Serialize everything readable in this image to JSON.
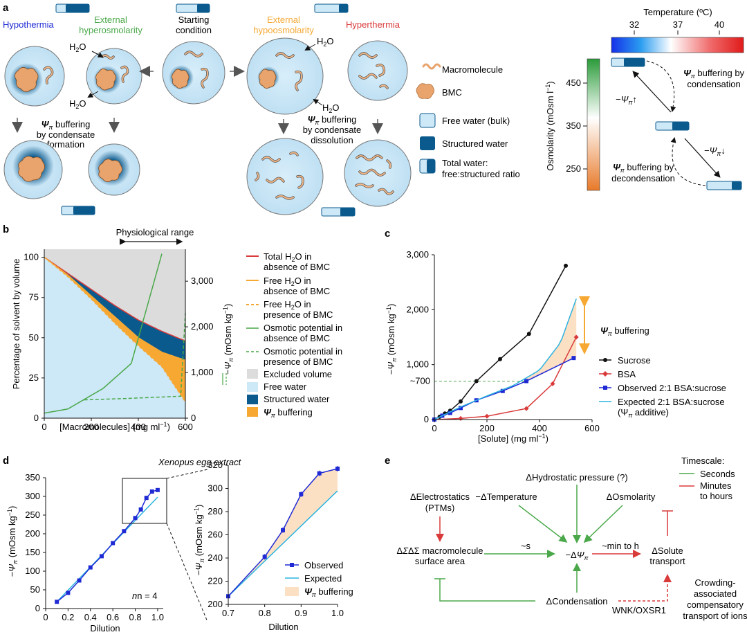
{
  "panels": {
    "a": "a",
    "b": "b",
    "c": "c",
    "d": "d",
    "e": "e"
  },
  "colors": {
    "free_water": "#cde8f6",
    "structured": "#0b5a8e",
    "bmc": "#e8a46c",
    "macro": "#f0b585",
    "orange": "#f6a833",
    "green": "#4aa84a",
    "red": "#d93a3a",
    "blue": "#1f2ad4",
    "cyan": "#2bb3e0",
    "grey": "#dcdcdc",
    "buffer_fill": "#fbe0c4"
  },
  "panel_a": {
    "hypothermia": "Hypothermia",
    "ext_hyper": [
      "External",
      "hyperosmolarity"
    ],
    "starting": [
      "Starting",
      "condition"
    ],
    "ext_hypo": [
      "External",
      "hypoosmolarity"
    ],
    "hyperthermia": "Hyperthermia",
    "h2o": "H",
    "h2o_sub": "2",
    "h2o_tail": "O",
    "psi": "Ψ",
    "pi": "π",
    "buf_form_a": " buffering",
    "buf_form_b": "by condensate",
    "buf_form_c": "formation",
    "buf_diss_a": " buffering",
    "buf_diss_b": "by condensate",
    "buf_diss_c": "dissolution",
    "legend": {
      "macromolecule": "Macromolecule",
      "bmc": "BMC",
      "free_water": "Free water (bulk)",
      "structured": "Structured water",
      "total_a": "Total water:",
      "total_b": "free:structured ratio"
    },
    "temp_title": "Temperature (ºC)",
    "temp_ticks": [
      "32",
      "37",
      "40"
    ],
    "osm_label": "Osmolarity (mOsm l",
    "osm_sup": "−1",
    "osm_close": ")",
    "osm_ticks": [
      "450",
      "350",
      "250"
    ],
    "cond_a": " buffering by",
    "cond_b": "condensation",
    "decond_a": " buffering by",
    "decond_b": "decondensation",
    "minus_psi_up": "−Ψ",
    "minus_psi_down": "−Ψ",
    "arrow_up": "↑",
    "arrow_down": "↓"
  },
  "panel_b": {
    "range_label": "Physiological range",
    "ylabel": "Percentage of solvent by volume",
    "xlabel": "[Macromolecules] (mg ml",
    "xlabel_sup": "−1",
    "xlabel_close": ")",
    "y2label_a": "−Ψ",
    "y2label_b": " (mOsm kg",
    "y2label_sup": "−1",
    "y2label_close": ")",
    "left_ticks": [
      "0",
      "25",
      "50",
      "75",
      "100"
    ],
    "right_ticks": [
      "0",
      "1,000",
      "2,000",
      "3,000"
    ],
    "x_ticks": [
      "0",
      "200",
      "400",
      "600"
    ],
    "legend": [
      [
        "Total H",
        "2",
        "O in",
        "absence of BMC"
      ],
      [
        "Free H",
        "2",
        "O in",
        "absence of BMC"
      ],
      [
        "Free H",
        "2",
        "O in",
        "presence of BMC"
      ],
      [
        "Osmotic potential in",
        "",
        "",
        "absence of BMC"
      ],
      [
        "Osmotic potential in",
        "",
        "",
        "presence of BMC"
      ]
    ],
    "legend_boxes": [
      "Excluded volume",
      "Free water",
      "Structured water",
      "Ψ"
    ],
    "legend_buf_tail": " buffering"
  },
  "chart_data": [
    {
      "type": "area",
      "panel": "b",
      "x": [
        0,
        100,
        200,
        300,
        400,
        500,
        600
      ],
      "series": [
        {
          "name": "Total H2O in absence of BMC",
          "values": [
            100,
            90,
            80,
            70,
            61,
            54,
            48
          ]
        },
        {
          "name": "Free H2O in absence of BMC",
          "values": [
            100,
            89,
            76,
            63,
            50,
            41,
            36
          ]
        },
        {
          "name": "Free H2O in presence of BMC",
          "values": [
            100,
            88,
            74,
            59,
            45,
            32,
            10
          ]
        },
        {
          "name": "Osmotic potential in absence of BMC",
          "x": [
            0,
            100,
            250,
            370,
            500
          ],
          "values": [
            110,
            200,
            650,
            1200,
            3600
          ]
        },
        {
          "name": "Osmotic potential in presence of BMC",
          "x": [
            170,
            350,
            580,
            600
          ],
          "values": [
            400,
            430,
            480,
            2300
          ]
        }
      ],
      "xlim": [
        0,
        600
      ],
      "ylim": [
        0,
        105
      ],
      "y2lim": [
        0,
        3700
      ]
    },
    {
      "type": "line",
      "panel": "c",
      "xlabel": "[Solute] (mg ml−1)",
      "ylabel": "−Ψπ (mOsm kg−1)",
      "x_ticks": [
        "0",
        "200",
        "400",
        "600"
      ],
      "y_ticks": [
        "0",
        "1,000",
        "2,000",
        "3,000"
      ],
      "ref_label": "~700",
      "buffer_label": " buffering",
      "series": [
        {
          "name": "Sucrose",
          "x": [
            0,
            20,
            40,
            60,
            100,
            160,
            250,
            360,
            500
          ],
          "values": [
            0,
            50,
            110,
            160,
            330,
            700,
            1100,
            1560,
            2800
          ]
        },
        {
          "name": "BSA",
          "x": [
            0,
            100,
            200,
            350,
            450,
            540
          ],
          "values": [
            0,
            20,
            60,
            200,
            650,
            1500
          ]
        },
        {
          "name": "Observed 2:1 BSA:sucrose",
          "x": [
            0,
            30,
            60,
            100,
            160,
            260,
            350,
            530
          ],
          "values": [
            0,
            70,
            120,
            210,
            350,
            520,
            700,
            1120
          ]
        },
        {
          "name": "Expected 2:1 BSA:sucrose",
          "x": [
            0,
            100,
            200,
            300,
            400,
            480,
            540
          ],
          "values": [
            0,
            230,
            430,
            620,
            900,
            1400,
            2200
          ]
        }
      ],
      "legend": [
        "Sucrose",
        "BSA",
        "Observed 2:1 BSA:sucrose",
        "Expected 2:1 BSA:sucrose"
      ],
      "legend_extra": "(Ψ",
      "legend_extra_tail": " additive)",
      "xlim": [
        0,
        600
      ],
      "ylim": [
        0,
        3000
      ]
    },
    {
      "type": "line",
      "panel": "d",
      "title": "Xenopus egg extract",
      "xlabel": "Dilution",
      "ylabel": "−Ψπ (mOsm kg−1)",
      "annotation": "n = 4",
      "x_ticks": [
        "0",
        "0.2",
        "0.4",
        "0.6",
        "0.8",
        "1.0"
      ],
      "y_ticks": [
        "0",
        "50",
        "100",
        "150",
        "200",
        "250",
        "300",
        "350"
      ],
      "series": [
        {
          "name": "Observed",
          "x": [
            0.1,
            0.2,
            0.3,
            0.4,
            0.5,
            0.6,
            0.7,
            0.8,
            0.85,
            0.9,
            0.95,
            1.0
          ],
          "values": [
            18,
            42,
            75,
            110,
            140,
            175,
            207,
            242,
            265,
            296,
            313,
            317
          ]
        },
        {
          "name": "Expected",
          "x": [
            0.1,
            1.0
          ],
          "values": [
            18,
            298
          ]
        }
      ],
      "xlim": [
        0,
        1.05
      ],
      "ylim": [
        0,
        350
      ]
    },
    {
      "type": "line",
      "panel": "d-inset",
      "xlabel": "Dilution",
      "x_ticks": [
        "0.7",
        "0.8",
        "0.9",
        "1.0"
      ],
      "y_ticks": [
        "200",
        "220",
        "240",
        "260",
        "280",
        "300",
        "320"
      ],
      "series": [
        {
          "name": "Observed",
          "x": [
            0.7,
            0.8,
            0.85,
            0.9,
            0.95,
            1.0
          ],
          "values": [
            207,
            241,
            264,
            295,
            313,
            317
          ]
        },
        {
          "name": "Expected",
          "x": [
            0.7,
            1.0
          ],
          "values": [
            207,
            298
          ]
        }
      ],
      "legend": [
        "Observed",
        "Expected",
        "Ψ"
      ],
      "legend_buf_tail": " buffering",
      "xlim": [
        0.7,
        1.0
      ],
      "ylim": [
        200,
        320
      ]
    }
  ],
  "panel_e": {
    "hydro": "ΔHydrostatic pressure (?)",
    "electro_a": "ΔElectrostatics",
    "electro_b": "(PTMs)",
    "temp": "−ΔTemperature",
    "osm": "ΔOsmolarity",
    "sigma_a": "ΔΣ macromolecule",
    "sigma_b": "surface area",
    "s": "~s",
    "minpsi": "−ΔΨ",
    "min_h": "~min to h",
    "solute_a": "ΔSolute",
    "solute_b": "transport",
    "cond": "ΔCondensation",
    "wnk": "WNK/OXSR1",
    "crowd": [
      "Crowding-",
      "associated",
      "compensatory",
      "transport of ions"
    ],
    "timescale": "Timescale:",
    "seconds": "Seconds",
    "minutes_a": "Minutes",
    "minutes_b": "to hours"
  }
}
